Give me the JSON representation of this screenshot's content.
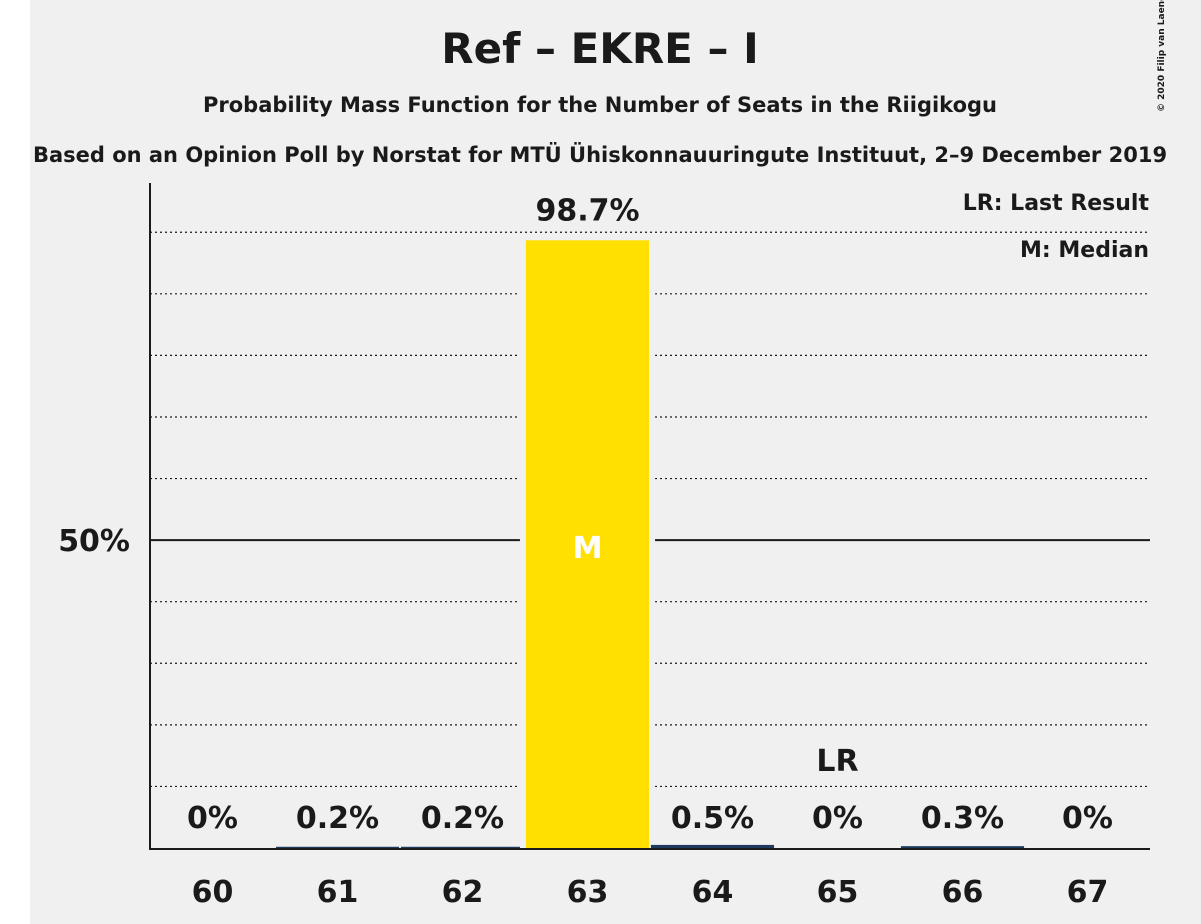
{
  "chart_data": {
    "type": "bar",
    "title": "Ref – EKRE – I",
    "subtitle": "Probability Mass Function for the Number of Seats in the Riigikogu",
    "subtitle2": "Based on an Opinion Poll by Norstat for MTÜ Ühiskonnauuringute Instituut, 2–9 December 2019",
    "copyright": "© 2020 Filip van Laenen",
    "categories": [
      "60",
      "61",
      "62",
      "63",
      "64",
      "65",
      "66",
      "67"
    ],
    "values": [
      0,
      0.2,
      0.2,
      98.7,
      0.5,
      0,
      0.3,
      0
    ],
    "value_labels": [
      "0%",
      "0.2%",
      "0.2%",
      "98.7%",
      "0.5%",
      "0%",
      "0.3%",
      "0%"
    ],
    "median_index": 3,
    "median_marker": "M",
    "last_result_index": 5,
    "last_result_marker": "LR",
    "ylim": [
      0,
      108
    ],
    "y_tick_label": "50%",
    "y_tick_value": 50,
    "grid_dotted_step": 10,
    "legend": [
      "LR: Last Result",
      "M: Median"
    ],
    "legend_position": "top-right",
    "colors": {
      "bar": "#FFE000",
      "small_bar": "#1e3a5f",
      "background": "#f0f0f0",
      "text": "#1a1a1a"
    }
  }
}
